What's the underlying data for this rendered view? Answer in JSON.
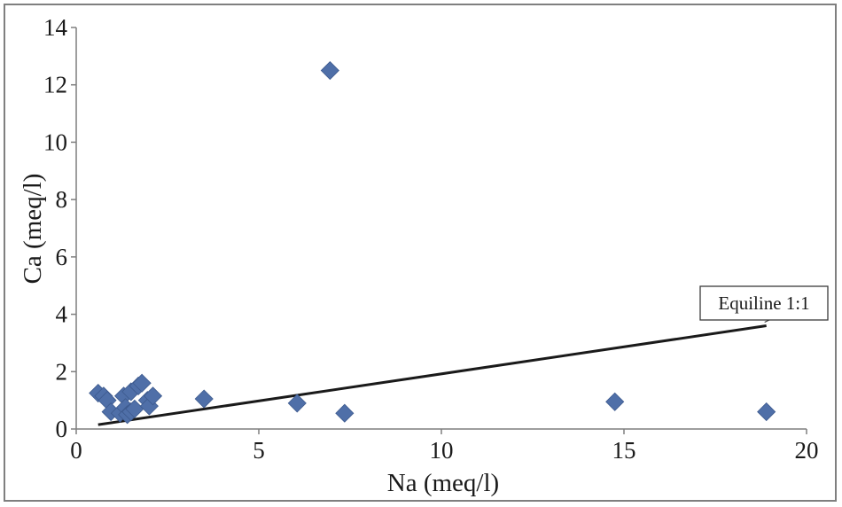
{
  "chart_data": {
    "type": "scatter",
    "title": "",
    "xlabel": "Na (meq/l)",
    "ylabel": "Ca (meq/l)",
    "xlim": [
      0,
      20
    ],
    "ylim": [
      0,
      14
    ],
    "xticks": [
      0,
      5,
      10,
      15,
      20
    ],
    "yticks": [
      0,
      2,
      4,
      6,
      8,
      10,
      12,
      14
    ],
    "grid": false,
    "legend": "none",
    "marker": "diamond",
    "marker_color": "#4f6fa8",
    "series": [
      {
        "points": [
          [
            0.6,
            1.25
          ],
          [
            0.75,
            1.15
          ],
          [
            0.85,
            1.0
          ],
          [
            0.95,
            0.6
          ],
          [
            1.2,
            0.55
          ],
          [
            1.3,
            1.15
          ],
          [
            1.35,
            0.75
          ],
          [
            1.4,
            0.5
          ],
          [
            1.5,
            0.6
          ],
          [
            1.5,
            1.3
          ],
          [
            1.6,
            0.7
          ],
          [
            1.7,
            1.5
          ],
          [
            1.8,
            1.6
          ],
          [
            1.95,
            1.0
          ],
          [
            2.0,
            0.8
          ],
          [
            2.1,
            1.15
          ],
          [
            3.5,
            1.05
          ],
          [
            6.05,
            0.9
          ],
          [
            6.95,
            12.5
          ],
          [
            7.35,
            0.55
          ],
          [
            14.75,
            0.95
          ],
          [
            18.9,
            0.6
          ]
        ]
      }
    ],
    "reference_line": {
      "label": "Equiline 1:1",
      "color": "#1a1a1a",
      "from": [
        0.6,
        0.15
      ],
      "to": [
        18.9,
        3.6
      ]
    }
  }
}
